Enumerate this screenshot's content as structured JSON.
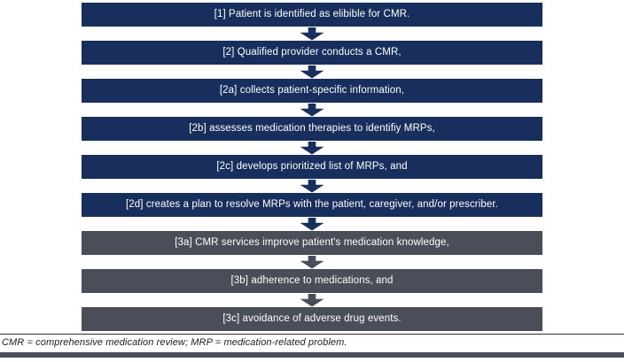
{
  "flowchart": {
    "steps": [
      {
        "id": "1",
        "label": "[1] Patient is identified as elibible for CMR.",
        "stage": "process"
      },
      {
        "id": "2",
        "label": "[2] Qualified provider conducts a CMR,",
        "stage": "process"
      },
      {
        "id": "2a",
        "label": "[2a] collects patient-specific information,",
        "stage": "process"
      },
      {
        "id": "2b",
        "label": "[2b] assesses medication therapies to identifiy MRPs,",
        "stage": "process"
      },
      {
        "id": "2c",
        "label": "[2c] develops prioritized list of MRPs, and",
        "stage": "process"
      },
      {
        "id": "2d",
        "label": "[2d] creates a plan to resolve MRPs with the patient, caregiver, and/or prescriber.",
        "stage": "process"
      },
      {
        "id": "3a",
        "label": "[3a] CMR services improve patient's medication knowledge,",
        "stage": "outcome"
      },
      {
        "id": "3b",
        "label": "[3b] adherence to medications, and",
        "stage": "outcome"
      },
      {
        "id": "3c",
        "label": "[3c] avoidance of adverse drug events.",
        "stage": "outcome"
      }
    ]
  },
  "footnote": "CMR = comprehensive medication review; MRP = medication-related problem.",
  "colors": {
    "process_navy": "#182f5e",
    "outcome_gray": "#4a4e58",
    "box_text": "#ffffff"
  }
}
